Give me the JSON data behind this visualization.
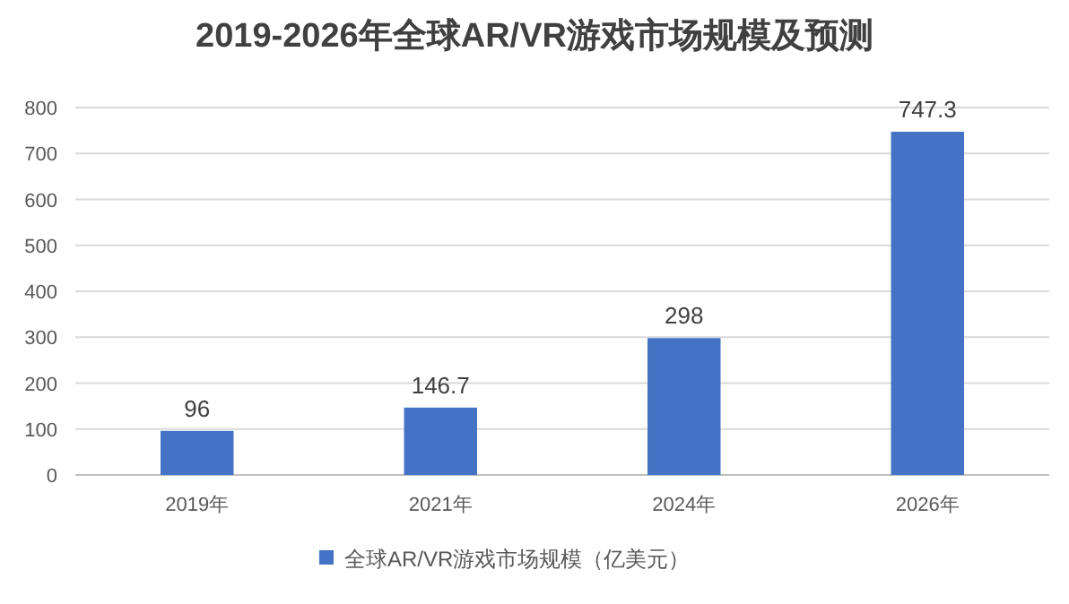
{
  "chart_data": {
    "type": "bar",
    "title": "2019-2026年全球AR/VR游戏市场规模及预测",
    "categories": [
      "2019年",
      "2021年",
      "2024年",
      "2026年"
    ],
    "series": [
      {
        "name": "全球AR/VR游戏市场规模（亿美元）",
        "color": "#4472c4",
        "values": [
          96,
          146.7,
          298,
          747.3
        ]
      }
    ],
    "ylim": [
      0,
      800
    ],
    "yticks": [
      0,
      100,
      200,
      300,
      400,
      500,
      600,
      700,
      800
    ],
    "grid": "y",
    "legend": "bottom",
    "data_labels": true
  }
}
